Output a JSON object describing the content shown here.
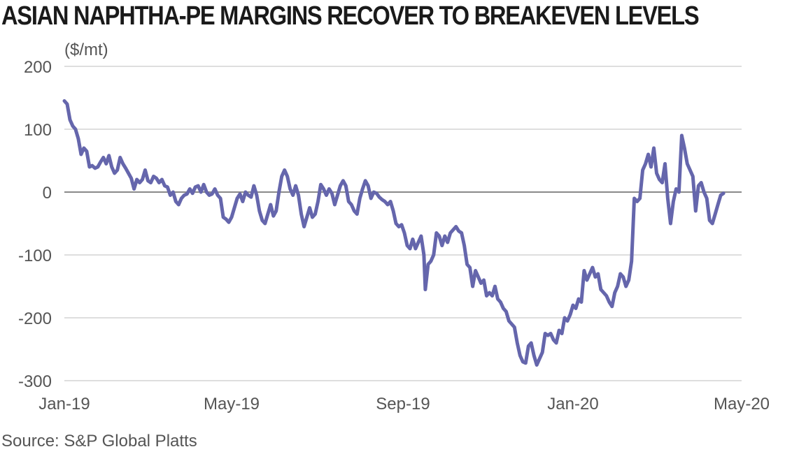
{
  "chart_data": {
    "type": "line",
    "title": "ASIAN NAPHTHA-PE MARGINS RECOVER TO BREAKEVEN LEVELS",
    "ylabel": "($/mt)",
    "source": "Source: S&P Global Platts",
    "ylim": [
      -300,
      200
    ],
    "yticks": [
      200,
      100,
      0,
      -100,
      -200,
      -300
    ],
    "ytick_labels": [
      "200",
      "100",
      "0",
      "-100",
      "-200",
      "-300"
    ],
    "xlim": [
      "2019-01-01",
      "2020-05-01"
    ],
    "xticks": [
      "2019-01-01",
      "2019-05-01",
      "2019-09-01",
      "2020-01-01",
      "2020-05-01"
    ],
    "xtick_labels": [
      "Jan-19",
      "May-19",
      "Sep-19",
      "Jan-20",
      "May-20"
    ],
    "grid": true,
    "line_color": "#6566ac",
    "series": [
      {
        "points": [
          [
            "2019-01-01",
            145
          ],
          [
            "2019-01-03",
            140
          ],
          [
            "2019-01-05",
            115
          ],
          [
            "2019-01-07",
            105
          ],
          [
            "2019-01-09",
            100
          ],
          [
            "2019-01-11",
            85
          ],
          [
            "2019-01-13",
            60
          ],
          [
            "2019-01-15",
            70
          ],
          [
            "2019-01-17",
            65
          ],
          [
            "2019-01-19",
            40
          ],
          [
            "2019-01-21",
            42
          ],
          [
            "2019-01-23",
            38
          ],
          [
            "2019-01-25",
            40
          ],
          [
            "2019-01-27",
            48
          ],
          [
            "2019-01-29",
            55
          ],
          [
            "2019-01-31",
            45
          ],
          [
            "2019-02-02",
            58
          ],
          [
            "2019-02-04",
            40
          ],
          [
            "2019-02-06",
            30
          ],
          [
            "2019-02-08",
            35
          ],
          [
            "2019-02-10",
            55
          ],
          [
            "2019-02-12",
            45
          ],
          [
            "2019-02-14",
            38
          ],
          [
            "2019-02-16",
            30
          ],
          [
            "2019-02-18",
            22
          ],
          [
            "2019-02-20",
            5
          ],
          [
            "2019-02-22",
            20
          ],
          [
            "2019-02-24",
            15
          ],
          [
            "2019-02-26",
            20
          ],
          [
            "2019-02-28",
            35
          ],
          [
            "2019-03-02",
            18
          ],
          [
            "2019-03-04",
            15
          ],
          [
            "2019-03-06",
            25
          ],
          [
            "2019-03-08",
            22
          ],
          [
            "2019-03-10",
            15
          ],
          [
            "2019-03-12",
            20
          ],
          [
            "2019-03-14",
            10
          ],
          [
            "2019-03-16",
            8
          ],
          [
            "2019-03-18",
            -5
          ],
          [
            "2019-03-20",
            0
          ],
          [
            "2019-03-22",
            -15
          ],
          [
            "2019-03-24",
            -20
          ],
          [
            "2019-03-26",
            -10
          ],
          [
            "2019-03-28",
            -5
          ],
          [
            "2019-03-30",
            -3
          ],
          [
            "2019-04-01",
            5
          ],
          [
            "2019-04-03",
            -2
          ],
          [
            "2019-04-05",
            8
          ],
          [
            "2019-04-07",
            10
          ],
          [
            "2019-04-09",
            0
          ],
          [
            "2019-04-11",
            12
          ],
          [
            "2019-04-13",
            0
          ],
          [
            "2019-04-15",
            -5
          ],
          [
            "2019-04-17",
            -3
          ],
          [
            "2019-04-19",
            5
          ],
          [
            "2019-04-21",
            -5
          ],
          [
            "2019-04-23",
            -10
          ],
          [
            "2019-04-25",
            -40
          ],
          [
            "2019-04-27",
            -43
          ],
          [
            "2019-04-29",
            -48
          ],
          [
            "2019-05-01",
            -40
          ],
          [
            "2019-05-03",
            -25
          ],
          [
            "2019-05-05",
            -10
          ],
          [
            "2019-05-07",
            -3
          ],
          [
            "2019-05-09",
            -15
          ],
          [
            "2019-05-11",
            0
          ],
          [
            "2019-05-13",
            -5
          ],
          [
            "2019-05-15",
            -8
          ],
          [
            "2019-05-17",
            10
          ],
          [
            "2019-05-19",
            -5
          ],
          [
            "2019-05-21",
            -30
          ],
          [
            "2019-05-23",
            -45
          ],
          [
            "2019-05-25",
            -50
          ],
          [
            "2019-05-27",
            -35
          ],
          [
            "2019-05-29",
            -20
          ],
          [
            "2019-05-31",
            -38
          ],
          [
            "2019-06-02",
            -30
          ],
          [
            "2019-06-04",
            0
          ],
          [
            "2019-06-06",
            25
          ],
          [
            "2019-06-08",
            35
          ],
          [
            "2019-06-10",
            25
          ],
          [
            "2019-06-12",
            5
          ],
          [
            "2019-06-14",
            -5
          ],
          [
            "2019-06-16",
            10
          ],
          [
            "2019-06-18",
            -5
          ],
          [
            "2019-06-20",
            -35
          ],
          [
            "2019-06-22",
            -55
          ],
          [
            "2019-06-24",
            -40
          ],
          [
            "2019-06-26",
            -25
          ],
          [
            "2019-06-28",
            -40
          ],
          [
            "2019-06-30",
            -35
          ],
          [
            "2019-07-02",
            -15
          ],
          [
            "2019-07-04",
            12
          ],
          [
            "2019-07-06",
            5
          ],
          [
            "2019-07-08",
            -5
          ],
          [
            "2019-07-10",
            5
          ],
          [
            "2019-07-12",
            -2
          ],
          [
            "2019-07-14",
            -20
          ],
          [
            "2019-07-16",
            -5
          ],
          [
            "2019-07-18",
            10
          ],
          [
            "2019-07-20",
            18
          ],
          [
            "2019-07-22",
            10
          ],
          [
            "2019-07-24",
            -15
          ],
          [
            "2019-07-26",
            -20
          ],
          [
            "2019-07-28",
            -30
          ],
          [
            "2019-07-30",
            -35
          ],
          [
            "2019-08-01",
            -10
          ],
          [
            "2019-08-03",
            5
          ],
          [
            "2019-08-05",
            18
          ],
          [
            "2019-08-07",
            10
          ],
          [
            "2019-08-09",
            -10
          ],
          [
            "2019-08-11",
            0
          ],
          [
            "2019-08-13",
            -2
          ],
          [
            "2019-08-15",
            -8
          ],
          [
            "2019-08-17",
            -12
          ],
          [
            "2019-08-19",
            -15
          ],
          [
            "2019-08-21",
            -20
          ],
          [
            "2019-08-23",
            -15
          ],
          [
            "2019-08-25",
            -30
          ],
          [
            "2019-08-27",
            -50
          ],
          [
            "2019-08-29",
            -55
          ],
          [
            "2019-08-31",
            -52
          ],
          [
            "2019-09-02",
            -65
          ],
          [
            "2019-09-04",
            -85
          ],
          [
            "2019-09-06",
            -90
          ],
          [
            "2019-09-08",
            -75
          ],
          [
            "2019-09-10",
            -90
          ],
          [
            "2019-09-12",
            -80
          ],
          [
            "2019-09-14",
            -70
          ],
          [
            "2019-09-16",
            -100
          ],
          [
            "2019-09-17",
            -155
          ],
          [
            "2019-09-19",
            -115
          ],
          [
            "2019-09-21",
            -110
          ],
          [
            "2019-09-23",
            -100
          ],
          [
            "2019-09-25",
            -65
          ],
          [
            "2019-09-27",
            -70
          ],
          [
            "2019-09-29",
            -85
          ],
          [
            "2019-10-01",
            -70
          ],
          [
            "2019-10-03",
            -80
          ],
          [
            "2019-10-05",
            -65
          ],
          [
            "2019-10-07",
            -60
          ],
          [
            "2019-10-09",
            -55
          ],
          [
            "2019-10-11",
            -62
          ],
          [
            "2019-10-13",
            -65
          ],
          [
            "2019-10-15",
            -85
          ],
          [
            "2019-10-17",
            -115
          ],
          [
            "2019-10-19",
            -120
          ],
          [
            "2019-10-21",
            -150
          ],
          [
            "2019-10-23",
            -125
          ],
          [
            "2019-10-25",
            -135
          ],
          [
            "2019-10-27",
            -145
          ],
          [
            "2019-10-29",
            -140
          ],
          [
            "2019-10-31",
            -165
          ],
          [
            "2019-11-02",
            -160
          ],
          [
            "2019-11-04",
            -165
          ],
          [
            "2019-11-06",
            -150
          ],
          [
            "2019-11-08",
            -170
          ],
          [
            "2019-11-10",
            -175
          ],
          [
            "2019-11-12",
            -185
          ],
          [
            "2019-11-14",
            -190
          ],
          [
            "2019-11-16",
            -205
          ],
          [
            "2019-11-18",
            -210
          ],
          [
            "2019-11-20",
            -215
          ],
          [
            "2019-11-22",
            -240
          ],
          [
            "2019-11-24",
            -260
          ],
          [
            "2019-11-26",
            -270
          ],
          [
            "2019-11-28",
            -272
          ],
          [
            "2019-11-30",
            -245
          ],
          [
            "2019-12-02",
            -240
          ],
          [
            "2019-12-04",
            -260
          ],
          [
            "2019-12-06",
            -275
          ],
          [
            "2019-12-08",
            -265
          ],
          [
            "2019-12-10",
            -255
          ],
          [
            "2019-12-12",
            -225
          ],
          [
            "2019-12-14",
            -228
          ],
          [
            "2019-12-16",
            -225
          ],
          [
            "2019-12-18",
            -235
          ],
          [
            "2019-12-20",
            -240
          ],
          [
            "2019-12-22",
            -220
          ],
          [
            "2019-12-24",
            -225
          ],
          [
            "2019-12-26",
            -200
          ],
          [
            "2019-12-28",
            -205
          ],
          [
            "2019-12-30",
            -195
          ],
          [
            "2020-01-01",
            -180
          ],
          [
            "2020-01-03",
            -185
          ],
          [
            "2020-01-05",
            -170
          ],
          [
            "2020-01-07",
            -175
          ],
          [
            "2020-01-09",
            -125
          ],
          [
            "2020-01-11",
            -140
          ],
          [
            "2020-01-13",
            -130
          ],
          [
            "2020-01-15",
            -120
          ],
          [
            "2020-01-17",
            -135
          ],
          [
            "2020-01-19",
            -130
          ],
          [
            "2020-01-21",
            -155
          ],
          [
            "2020-01-23",
            -160
          ],
          [
            "2020-01-25",
            -165
          ],
          [
            "2020-01-27",
            -175
          ],
          [
            "2020-01-29",
            -182
          ],
          [
            "2020-01-31",
            -160
          ],
          [
            "2020-02-02",
            -150
          ],
          [
            "2020-02-04",
            -130
          ],
          [
            "2020-02-06",
            -135
          ],
          [
            "2020-02-08",
            -150
          ],
          [
            "2020-02-10",
            -140
          ],
          [
            "2020-02-12",
            -110
          ],
          [
            "2020-02-14",
            -10
          ],
          [
            "2020-02-16",
            -15
          ],
          [
            "2020-02-18",
            -10
          ],
          [
            "2020-02-20",
            35
          ],
          [
            "2020-02-22",
            45
          ],
          [
            "2020-02-24",
            60
          ],
          [
            "2020-02-26",
            40
          ],
          [
            "2020-02-28",
            70
          ],
          [
            "2020-03-01",
            30
          ],
          [
            "2020-03-03",
            20
          ],
          [
            "2020-03-05",
            15
          ],
          [
            "2020-03-07",
            45
          ],
          [
            "2020-03-09",
            -10
          ],
          [
            "2020-03-11",
            -50
          ],
          [
            "2020-03-13",
            -15
          ],
          [
            "2020-03-15",
            5
          ],
          [
            "2020-03-17",
            0
          ],
          [
            "2020-03-19",
            90
          ],
          [
            "2020-03-21",
            70
          ],
          [
            "2020-03-23",
            45
          ],
          [
            "2020-03-25",
            35
          ],
          [
            "2020-03-27",
            25
          ],
          [
            "2020-03-29",
            -30
          ],
          [
            "2020-03-31",
            10
          ],
          [
            "2020-04-02",
            15
          ],
          [
            "2020-04-04",
            0
          ],
          [
            "2020-04-06",
            -10
          ],
          [
            "2020-04-08",
            -45
          ],
          [
            "2020-04-10",
            -50
          ],
          [
            "2020-04-12",
            -35
          ],
          [
            "2020-04-14",
            -20
          ],
          [
            "2020-04-16",
            -5
          ],
          [
            "2020-04-18",
            -2
          ]
        ]
      }
    ]
  }
}
